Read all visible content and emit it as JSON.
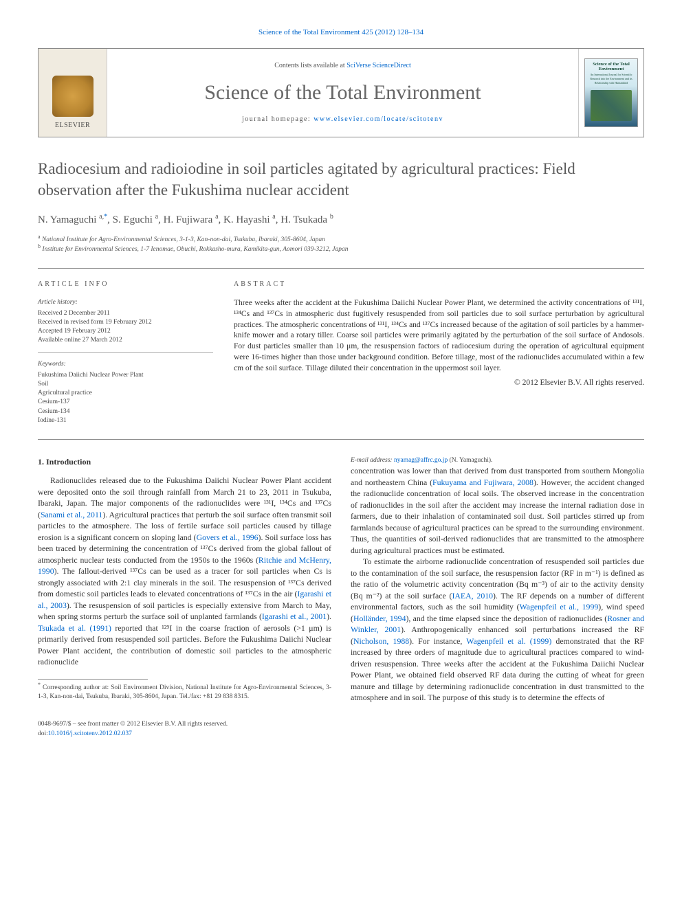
{
  "topLink": {
    "prefix_link": "Science of the Total Environment 425 (2012) 128–134"
  },
  "header": {
    "availPrefix": "Contents lists available at ",
    "availLink": "SciVerse ScienceDirect",
    "journalName": "Science of the Total Environment",
    "homepagePrefix": "journal homepage: ",
    "homepageLink": "www.elsevier.com/locate/scitotenv",
    "elsevier": "ELSEVIER",
    "coverTitle": "Science of the Total Environment",
    "coverSub": "An International Journal for Scientific Research into the Environment and its Relationship with Humankind"
  },
  "title": "Radiocesium and radioiodine in soil particles agitated by agricultural practices: Field observation after the Fukushima nuclear accident",
  "authorsHtml": "N. Yamaguchi <sup>a,</sup><span class='corr'><sup>*</sup></span>, S. Eguchi <sup>a</sup>, H. Fujiwara <sup>a</sup>, K. Hayashi <sup>a</sup>, H. Tsukada <sup>b</sup>",
  "affiliations": [
    {
      "sup": "a",
      "text": "National Institute for Agro-Environmental Sciences, 3-1-3, Kan-non-dai, Tsukuba, Ibaraki, 305-8604, Japan"
    },
    {
      "sup": "b",
      "text": "Institute for Environmental Sciences, 1-7 Ienomae, Obuchi, Rokkasho-mura, Kamikita-gun, Aomori 039-3212, Japan"
    }
  ],
  "articleInfoLabel": "ARTICLE INFO",
  "abstractLabel": "ABSTRACT",
  "history": {
    "head": "Article history:",
    "items": [
      "Received 2 December 2011",
      "Received in revised form 19 February 2012",
      "Accepted 19 February 2012",
      "Available online 27 March 2012"
    ]
  },
  "keywords": {
    "head": "Keywords:",
    "items": [
      "Fukushima Daiichi Nuclear Power Plant",
      "Soil",
      "Agricultural practice",
      "Cesium-137",
      "Cesium-134",
      "Iodine-131"
    ]
  },
  "abstract": {
    "text": "Three weeks after the accident at the Fukushima Daiichi Nuclear Power Plant, we determined the activity concentrations of ¹³¹I, ¹³⁴Cs and ¹³⁷Cs in atmospheric dust fugitively resuspended from soil particles due to soil surface perturbation by agricultural practices. The atmospheric concentrations of ¹³¹I, ¹³⁴Cs and ¹³⁷Cs increased because of the agitation of soil particles by a hammer-knife mower and a rotary tiller. Coarse soil particles were primarily agitated by the perturbation of the soil surface of Andosols. For dust particles smaller than 10 μm, the resuspension factors of radiocesium during the operation of agricultural equipment were 16-times higher than those under background condition. Before tillage, most of the radionuclides accumulated within a few cm of the soil surface. Tillage diluted their concentration in the uppermost soil layer.",
    "copyright": "© 2012 Elsevier B.V. All rights reserved."
  },
  "sectionHead": "1. Introduction",
  "paragraphs": [
    "Radionuclides released due to the Fukushima Daiichi Nuclear Power Plant accident were deposited onto the soil through rainfall from March 21 to 23, 2011 in Tsukuba, Ibaraki, Japan. The major components of the radionuclides were ¹³¹I, ¹³⁴Cs and ¹³⁷Cs (<span class='cite'>Sanami et al., 2011</span>). Agricultural practices that perturb the soil surface often transmit soil particles to the atmosphere. The loss of fertile surface soil particles caused by tillage erosion is a significant concern on sloping land (<span class='cite'>Govers et al., 1996</span>). Soil surface loss has been traced by determining the concentration of ¹³⁷Cs derived from the global fallout of atmospheric nuclear tests conducted from the 1950s to the 1960s (<span class='cite'>Ritchie and McHenry, 1990</span>). The fallout-derived ¹³⁷Cs can be used as a tracer for soil particles when Cs is strongly associated with 2:1 clay minerals in the soil. The resuspension of ¹³⁷Cs derived from domestic soil particles leads to elevated concentrations of ¹³⁷Cs in the air (<span class='cite'>Igarashi et al., 2003</span>). The resuspension of soil particles is especially extensive from March to May, when spring storms perturb the surface soil of unplanted farmlands (<span class='cite'>Igarashi et al., 2001</span>). <span class='cite'>Tsukada et al. (1991)</span> reported that ¹²⁹I in the coarse fraction of aerosols (>1 μm) is primarily derived from resuspended soil particles. Before the Fukushima Daiichi Nuclear Power Plant accident, the contribution of domestic soil particles to the atmospheric radionuclide",
    "concentration was lower than that derived from dust transported from southern Mongolia and northeastern China (<span class='cite'>Fukuyama and Fujiwara, 2008</span>). However, the accident changed the radionuclide concentration of local soils. The observed increase in the concentration of radionuclides in the soil after the accident may increase the internal radiation dose in farmers, due to their inhalation of contaminated soil dust. Soil particles stirred up from farmlands because of agricultural practices can be spread to the surrounding environment. Thus, the quantities of soil-derived radionuclides that are transmitted to the atmosphere during agricultural practices must be estimated.",
    "To estimate the airborne radionuclide concentration of resuspended soil particles due to the contamination of the soil surface, the resuspension factor (RF in m⁻¹) is defined as the ratio of the volumetric activity concentration (Bq m⁻³) of air to the activity density (Bq m⁻²) at the soil surface (<span class='cite'>IAEA, 2010</span>). The RF depends on a number of different environmental factors, such as the soil humidity (<span class='cite'>Wagenpfeil et al., 1999</span>), wind speed (<span class='cite'>Holländer, 1994</span>), and the time elapsed since the deposition of radionuclides (<span class='cite'>Rosner and Winkler, 2001</span>). Anthropogenically enhanced soil perturbations increased the RF (<span class='cite'>Nicholson, 1988</span>). For instance, <span class='cite'>Wagenpfeil et al. (1999)</span> demonstrated that the RF increased by three orders of magnitude due to agricultural practices compared to wind-driven resuspension. Three weeks after the accident at the Fukushima Daiichi Nuclear Power Plant, we obtained field observed RF data during the cutting of wheat for green manure and tillage by determining radionuclide concentration in dust transmitted to the atmosphere and in soil. The purpose of this study is to determine the effects of"
  ],
  "footnotes": {
    "corr": "Corresponding author at: Soil Environment Division, National Institute for Agro-Environmental Sciences, 3-1-3, Kan-non-dai, Tsukuba, Ibaraki, 305-8604, Japan. Tel./fax: +81 29 838 8315.",
    "emailLabel": "E-mail address: ",
    "emailLink": "nyamag@affrc.go.jp",
    "emailSuffix": " (N. Yamaguchi)."
  },
  "footer": {
    "left1": "0048-9697/$ – see front matter © 2012 Elsevier B.V. All rights reserved.",
    "left2prefix": "doi:",
    "left2link": "10.1016/j.scitotenv.2012.02.037"
  },
  "colors": {
    "link": "#0066cc",
    "titleGray": "#5a5a5a",
    "border": "#888888",
    "bg": "#ffffff"
  }
}
